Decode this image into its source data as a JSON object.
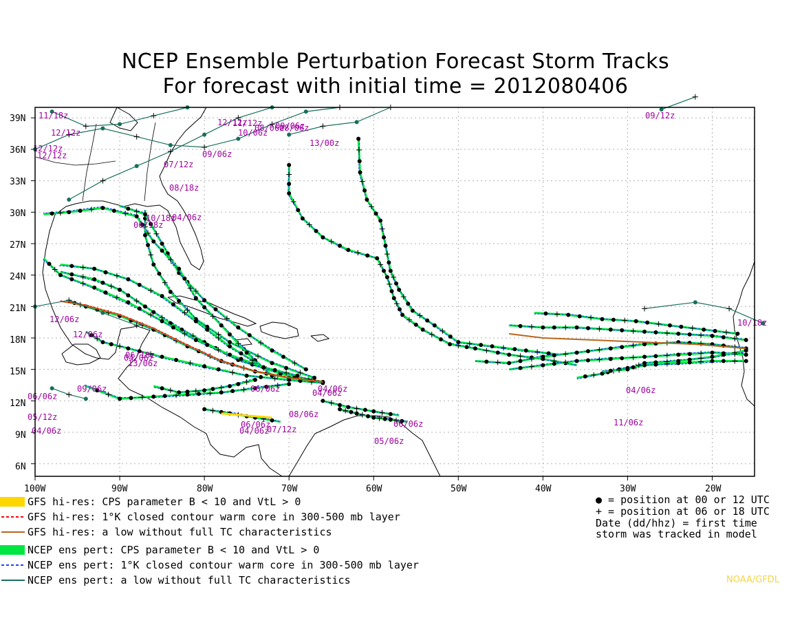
{
  "title": {
    "line1": "NCEP Ensemble Perturbation Forecast Storm Tracks",
    "line2": "For forecast with initial time = 2012080406"
  },
  "map": {
    "lon_range": [
      -100,
      -15
    ],
    "lat_range": [
      4.8,
      40
    ],
    "lat_labels": [
      "39N",
      "36N",
      "33N",
      "30N",
      "27N",
      "24N",
      "21N",
      "18N",
      "15N",
      "12N",
      "9N",
      "6N"
    ],
    "lon_labels": [
      "100W",
      "90W",
      "80W",
      "70W",
      "60W",
      "50W",
      "40W",
      "30W",
      "20W"
    ],
    "colors": {
      "gfs_cps": "#ffd700",
      "gfs_warm": "#ff0000",
      "gfs_low": "#b8651b",
      "ens_cps": "#00e641",
      "ens_warm": "#1f3fff",
      "ens_low": "#16705a",
      "label": "#a000a0",
      "land": "#000000"
    },
    "date_labels": [
      "11/18z",
      "12/12z",
      "12/12z",
      "12/12z",
      "12/12z",
      "09/06z",
      "08/06z",
      "13/00z",
      "07/12z",
      "08/18z",
      "09/12z",
      "06/18z",
      "12/06z",
      "12/06z",
      "06/18z",
      "13/06z",
      "11/12z",
      "10/06z",
      "08/06z",
      "09/06z",
      "04/06z",
      "06/06z",
      "04/06z",
      "06/06z",
      "09/06z",
      "04/06z",
      "10/18z",
      "04/06z",
      "04/06z",
      "05/12z",
      "04/06z",
      "08/06z",
      "07/12z",
      "06/06z",
      "05/06z",
      "06/06z",
      "11/06z",
      "04/06z",
      "10/18z"
    ]
  },
  "legend": {
    "items": [
      {
        "label": "GFS hi-res: CPS parameter B < 10 and VtL > 0",
        "style": "solid-thick",
        "color": "#ffd700"
      },
      {
        "label": "GFS hi-res: 1°K closed contour warm core in 300-500 mb layer",
        "style": "dashed",
        "color": "#ff0000"
      },
      {
        "label": "GFS hi-res: a low without full TC characteristics",
        "style": "solid",
        "color": "#b8651b"
      },
      {
        "label": "NCEP ens pert: CPS parameter B < 10 and VtL > 0",
        "style": "solid-thick",
        "color": "#00e641"
      },
      {
        "label": "NCEP ens pert: 1°K closed contour warm core in 300-500 mb layer",
        "style": "dashed",
        "color": "#1f3fff"
      },
      {
        "label": "NCEP ens pert: a low without full TC characteristics",
        "style": "solid",
        "color": "#16705a"
      }
    ],
    "key_lines": [
      "● = position at 00 or 12 UTC",
      "+ = position at 06 or 18 UTC",
      "Date (dd/hhz)  = first time",
      " storm was tracked in model"
    ]
  },
  "credit": "NOAA/GFDL"
}
